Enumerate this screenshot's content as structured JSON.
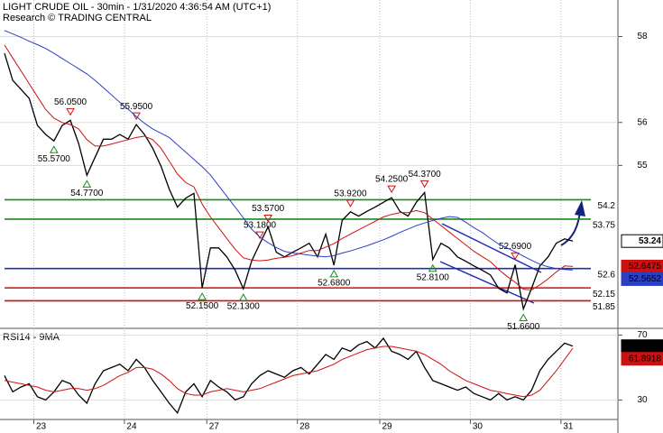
{
  "chart_data": [
    {
      "type": "line",
      "title": "LIGHT CRUDE OIL - 30min - 1/31/2020 4:36:54 AM (UTC+1)",
      "subtitle": "Research © TRADING CENTRAL",
      "categories": [
        null,
        null,
        null,
        null,
        "23",
        null,
        null,
        null,
        null,
        null,
        null,
        null,
        null,
        null,
        null,
        "24",
        null,
        null,
        null,
        null,
        null,
        null,
        null,
        null,
        null,
        "27",
        null,
        null,
        null,
        null,
        null,
        null,
        null,
        null,
        null,
        null,
        "28",
        null,
        null,
        null,
        null,
        null,
        null,
        null,
        null,
        null,
        "29",
        null,
        null,
        null,
        null,
        null,
        null,
        null,
        null,
        null,
        null,
        "30",
        null,
        null,
        null,
        null,
        null,
        null,
        null,
        null,
        null,
        null,
        "31",
        null
      ],
      "ylim": [
        51.25,
        58.85
      ],
      "yticks": [
        55,
        56,
        58
      ],
      "grid": true,
      "series": [
        {
          "color": "#000000",
          "values": [
            57.61,
            56.98,
            56.77,
            56.56,
            55.93,
            55.72,
            55.57,
            55.93,
            56.05,
            55.51,
            54.77,
            55.19,
            55.61,
            55.61,
            55.72,
            55.61,
            55.95,
            55.72,
            55.4,
            54.98,
            54.45,
            54.03,
            54.24,
            54.35,
            52.15,
            53.08,
            53.08,
            52.87,
            52.56,
            52.13,
            52.77,
            53.18,
            53.57,
            52.98,
            52.87,
            52.98,
            53.08,
            53.19,
            52.87,
            53.4,
            52.68,
            53.72,
            53.92,
            53.82,
            53.93,
            54.03,
            54.14,
            54.25,
            53.93,
            53.82,
            54.14,
            54.37,
            52.81,
            53.19,
            53.08,
            52.87,
            52.77,
            52.66,
            52.56,
            52.45,
            52.14,
            52.03,
            52.69,
            51.66,
            52.14,
            52.66,
            52.87,
            53.19,
            53.29,
            53.24
          ],
          "value_labels": [
            null,
            null,
            null,
            null,
            null,
            null,
            "55.5700",
            null,
            "56.0500",
            null,
            "54.7700",
            null,
            null,
            null,
            null,
            null,
            "55.9500",
            null,
            null,
            null,
            null,
            null,
            null,
            null,
            "52.1500",
            null,
            null,
            null,
            null,
            "52.1300",
            null,
            "53.1800",
            "53.5700",
            null,
            null,
            null,
            null,
            null,
            null,
            null,
            "52.6800",
            null,
            "53.9200",
            null,
            null,
            null,
            null,
            "54.2500",
            null,
            null,
            null,
            "54.3700",
            "52.8100",
            null,
            null,
            null,
            null,
            null,
            null,
            null,
            null,
            null,
            "52.6900",
            "51.6600",
            null,
            null,
            null,
            null,
            null,
            null
          ]
        },
        {
          "color": "#cc1111",
          "values": [
            57.8,
            57.5,
            57.2,
            56.9,
            56.6,
            56.3,
            56.1,
            56.0,
            55.95,
            55.85,
            55.6,
            55.45,
            55.45,
            55.5,
            55.55,
            55.6,
            55.65,
            55.68,
            55.6,
            55.4,
            55.1,
            54.8,
            54.6,
            54.5,
            54.1,
            53.8,
            53.55,
            53.3,
            53.05,
            52.85,
            52.8,
            52.78,
            52.8,
            52.84,
            52.86,
            52.9,
            52.96,
            53.02,
            53.02,
            53.1,
            53.18,
            53.3,
            53.4,
            53.5,
            53.6,
            53.7,
            53.8,
            53.86,
            53.9,
            53.9,
            53.95,
            53.9,
            53.75,
            53.6,
            53.45,
            53.3,
            53.15,
            53.0,
            52.88,
            52.76,
            52.58,
            52.42,
            52.28,
            52.12,
            52.1,
            52.22,
            52.36,
            52.52,
            52.66,
            52.6475
          ]
        },
        {
          "color": "#2b3fc4",
          "values": [
            58.14,
            58.06,
            57.98,
            57.89,
            57.81,
            57.72,
            57.61,
            57.49,
            57.37,
            57.25,
            57.13,
            56.98,
            56.81,
            56.64,
            56.47,
            56.31,
            56.14,
            55.98,
            55.85,
            55.75,
            55.65,
            55.48,
            55.31,
            55.14,
            54.97,
            54.78,
            54.53,
            54.28,
            54.03,
            53.78,
            53.52,
            53.33,
            53.2,
            53.09,
            53.0,
            52.96,
            52.94,
            52.91,
            52.89,
            52.87,
            52.9,
            52.96,
            53.01,
            53.07,
            53.13,
            53.2,
            53.27,
            53.35,
            53.44,
            53.52,
            53.6,
            53.66,
            53.72,
            53.77,
            53.81,
            53.79,
            53.68,
            53.55,
            53.44,
            53.3,
            53.17,
            53.08,
            52.99,
            52.89,
            52.79,
            52.7,
            52.64,
            52.6,
            52.58,
            52.5652
          ]
        }
      ],
      "levels": [
        {
          "value": 54.2,
          "color": "#1a8a1a"
        },
        {
          "value": 53.75,
          "color": "#1a8a1a"
        },
        {
          "value": 52.6,
          "color": "#1f2fb8"
        },
        {
          "value": 52.15,
          "color": "#cc1111"
        },
        {
          "value": 51.85,
          "color": "#cc1111"
        }
      ]
    },
    {
      "type": "line",
      "title": "RSI14 - 9MA",
      "ylim": [
        18,
        73
      ],
      "yticks": [
        30,
        70
      ],
      "grid": true,
      "series": [
        {
          "color": "#000000",
          "values": [
            45,
            35,
            38,
            40,
            32,
            30,
            35,
            42,
            40,
            33,
            28,
            40,
            48,
            50,
            52,
            48,
            55,
            50,
            42,
            35,
            28,
            22,
            35,
            40,
            32,
            42,
            38,
            35,
            30,
            32,
            40,
            45,
            48,
            46,
            44,
            48,
            50,
            46,
            52,
            58,
            55,
            62,
            60,
            64,
            66,
            62,
            68,
            60,
            58,
            55,
            60,
            50,
            42,
            40,
            38,
            36,
            38,
            34,
            32,
            30,
            34,
            30,
            32,
            30,
            36,
            48,
            55,
            60,
            65,
            63.1533
          ]
        },
        {
          "color": "#cc1111",
          "values": [
            42,
            41,
            40,
            39,
            38,
            36,
            35,
            36,
            37,
            37,
            36,
            37,
            39,
            42,
            45,
            47,
            50,
            50,
            49,
            46,
            42,
            37,
            34,
            33,
            33,
            35,
            36,
            37,
            36,
            35,
            36,
            37,
            39,
            41,
            43,
            45,
            46,
            47,
            48,
            50,
            52,
            55,
            57,
            59,
            61,
            62,
            63,
            63,
            62,
            61,
            60,
            58,
            55,
            52,
            48,
            45,
            42,
            40,
            38,
            36,
            35,
            34,
            33,
            32,
            33,
            36,
            42,
            48,
            55,
            61.8918
          ]
        }
      ]
    }
  ]
}
